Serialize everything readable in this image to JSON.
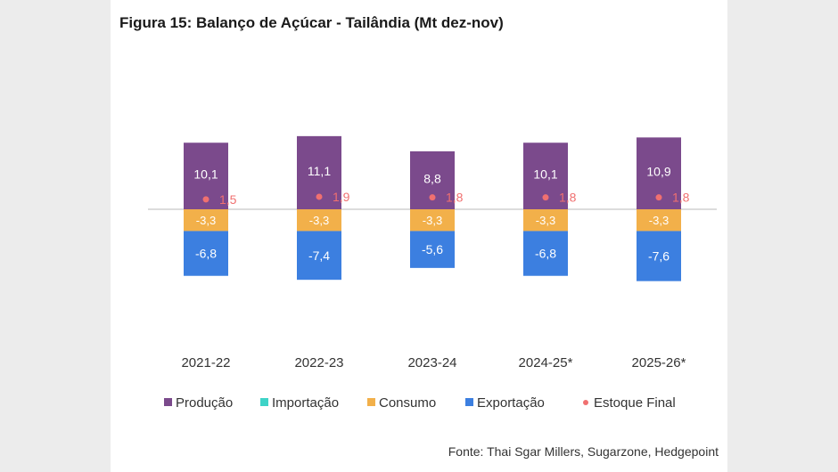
{
  "title": "Figura 15: Balanço de Açúcar - Tailândia (Mt dez-nov)",
  "source": "Fonte: Thai Sgar Millers, Sugarzone, Hedgepoint",
  "colors": {
    "producao": "#7b4a8c",
    "importacao": "#3ed3c7",
    "consumo": "#f2b04a",
    "exportacao": "#3c7fe0",
    "estoque": "#f07070"
  },
  "chart_data": {
    "type": "bar",
    "stacked": true,
    "categories": [
      "2021-22",
      "2022-23",
      "2023-24",
      "2024-25*",
      "2025-26*"
    ],
    "series": [
      {
        "name": "Produção",
        "values": [
          10.1,
          11.1,
          8.8,
          10.1,
          10.9
        ],
        "labels": [
          "10,1",
          "11,1",
          "8,8",
          "10,1",
          "10,9"
        ]
      },
      {
        "name": "Importação",
        "values": [
          0,
          0,
          0,
          0,
          0
        ],
        "labels": []
      },
      {
        "name": "Consumo",
        "values": [
          -3.3,
          -3.3,
          -3.3,
          -3.3,
          -3.3
        ],
        "labels": [
          "-3,3",
          "-3,3",
          "-3,3",
          "-3,3",
          "-3,3"
        ]
      },
      {
        "name": "Exportação",
        "values": [
          -6.8,
          -7.4,
          -5.6,
          -6.8,
          -7.6
        ],
        "labels": [
          "-6,8",
          "-7,4",
          "-5,6",
          "-6,8",
          "-7,6"
        ]
      },
      {
        "name": "Estoque Final",
        "type": "scatter",
        "values": [
          1.5,
          1.9,
          1.8,
          1.8,
          1.8
        ],
        "labels": [
          "1,5",
          "1,9",
          "1,8",
          "1,8",
          "1,8"
        ]
      }
    ],
    "legend": [
      "Produção",
      "Importação",
      "Consumo",
      "Exportação",
      "Estoque Final"
    ],
    "legend_position": "bottom",
    "grid": false
  }
}
